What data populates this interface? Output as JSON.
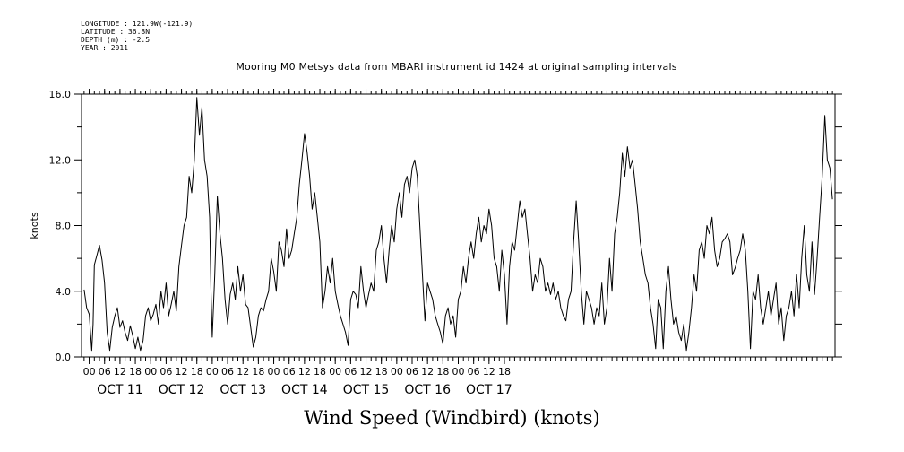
{
  "header": {
    "longitude": "LONGITUDE : 121.9W(-121.9)",
    "latitude": "LATITUDE : 36.8N",
    "depth": "DEPTH (m) : -2.5",
    "year": "YEAR : 2011"
  },
  "chart_data": {
    "type": "line",
    "title": "Mooring M0 Metsys data from MBARI instrument id 1424 at original sampling intervals",
    "bottom_title": "Wind Speed (Windbird) (knots)",
    "ylabel": "knots",
    "xlabel": "",
    "ylim": [
      0,
      16
    ],
    "yticks": [
      "0.0",
      "4.0",
      "8.0",
      "12.0",
      "16.0"
    ],
    "xlim": [
      "OCT 10 21:00",
      "OCT 17 21:00"
    ],
    "x_hour_ticks": [
      "00",
      "06",
      "12",
      "18",
      "00",
      "06",
      "12",
      "18",
      "00",
      "06",
      "12",
      "18",
      "00",
      "06",
      "12",
      "18",
      "00",
      "06",
      "12",
      "18",
      "00",
      "06",
      "12",
      "18",
      "00",
      "06",
      "12",
      "18"
    ],
    "x_day_labels": [
      "OCT 11",
      "OCT 12",
      "OCT 13",
      "OCT 14",
      "OCT 15",
      "OCT 16",
      "OCT 17"
    ],
    "grid": false,
    "series": [
      {
        "x_unit": "hours from OCT 11 00:00",
        "points": [
          [
            -2,
            4.1
          ],
          [
            -1,
            3.0
          ],
          [
            0,
            2.6
          ],
          [
            0.5,
            1.5
          ],
          [
            1,
            0.4
          ],
          [
            1.5,
            2.0
          ],
          [
            2,
            5.6
          ],
          [
            3,
            6.2
          ],
          [
            4,
            6.8
          ],
          [
            5,
            5.9
          ],
          [
            6,
            4.5
          ],
          [
            7,
            1.5
          ],
          [
            8,
            0.4
          ],
          [
            9,
            1.8
          ],
          [
            10,
            2.5
          ],
          [
            11,
            3.0
          ],
          [
            12,
            1.8
          ],
          [
            13,
            2.2
          ],
          [
            14,
            1.5
          ],
          [
            15,
            1.0
          ],
          [
            16,
            1.9
          ],
          [
            17,
            1.3
          ],
          [
            18,
            0.5
          ],
          [
            19,
            1.2
          ],
          [
            20,
            0.4
          ],
          [
            21,
            1.0
          ],
          [
            22,
            2.5
          ],
          [
            23,
            3.0
          ],
          [
            24,
            2.2
          ],
          [
            25,
            2.6
          ],
          [
            26,
            3.2
          ],
          [
            27,
            2.0
          ],
          [
            28,
            4.0
          ],
          [
            29,
            3.0
          ],
          [
            30,
            4.5
          ],
          [
            31,
            2.5
          ],
          [
            32,
            3.2
          ],
          [
            33,
            4.0
          ],
          [
            34,
            2.8
          ],
          [
            35,
            5.5
          ],
          [
            36,
            6.8
          ],
          [
            37,
            8.0
          ],
          [
            38,
            8.5
          ],
          [
            39,
            11.0
          ],
          [
            40,
            10.0
          ],
          [
            41,
            12.0
          ],
          [
            42,
            15.8
          ],
          [
            43,
            13.5
          ],
          [
            44,
            15.2
          ],
          [
            45,
            12.0
          ],
          [
            46,
            11.0
          ],
          [
            47,
            8.5
          ],
          [
            47.5,
            4.0
          ],
          [
            48,
            1.2
          ],
          [
            49,
            5.0
          ],
          [
            50,
            9.8
          ],
          [
            51,
            7.5
          ],
          [
            52,
            6.0
          ],
          [
            53,
            3.5
          ],
          [
            54,
            2.0
          ],
          [
            55,
            3.8
          ],
          [
            56,
            4.5
          ],
          [
            57,
            3.5
          ],
          [
            58,
            5.5
          ],
          [
            59,
            4.0
          ],
          [
            60,
            5.0
          ],
          [
            61,
            3.2
          ],
          [
            62,
            3.0
          ],
          [
            63,
            1.8
          ],
          [
            64,
            0.6
          ],
          [
            65,
            1.2
          ],
          [
            66,
            2.5
          ],
          [
            67,
            3.0
          ],
          [
            68,
            2.8
          ],
          [
            69,
            3.5
          ],
          [
            70,
            4.0
          ],
          [
            71,
            6.0
          ],
          [
            72,
            5.2
          ],
          [
            73,
            4.0
          ],
          [
            74,
            7.0
          ],
          [
            75,
            6.5
          ],
          [
            76,
            5.5
          ],
          [
            77,
            7.8
          ],
          [
            78,
            6.0
          ],
          [
            79,
            6.5
          ],
          [
            80,
            7.5
          ],
          [
            81,
            8.5
          ],
          [
            82,
            10.5
          ],
          [
            83,
            12.0
          ],
          [
            84,
            13.6
          ],
          [
            85,
            12.5
          ],
          [
            86,
            11.0
          ],
          [
            87,
            9.0
          ],
          [
            88,
            10.0
          ],
          [
            89,
            8.5
          ],
          [
            90,
            7.0
          ],
          [
            91,
            3.0
          ],
          [
            92,
            4.0
          ],
          [
            93,
            5.5
          ],
          [
            94,
            4.5
          ],
          [
            95,
            6.0
          ],
          [
            96,
            4.0
          ],
          [
            97,
            3.2
          ],
          [
            98,
            2.5
          ],
          [
            99,
            2.0
          ],
          [
            100,
            1.5
          ],
          [
            101,
            0.7
          ],
          [
            102,
            3.5
          ],
          [
            103,
            4.0
          ],
          [
            104,
            3.8
          ],
          [
            105,
            3.0
          ],
          [
            106,
            5.5
          ],
          [
            107,
            4.0
          ],
          [
            108,
            3.0
          ],
          [
            109,
            3.8
          ],
          [
            110,
            4.5
          ],
          [
            111,
            4.0
          ],
          [
            112,
            6.5
          ],
          [
            113,
            7.0
          ],
          [
            114,
            8.0
          ],
          [
            115,
            6.0
          ],
          [
            116,
            4.5
          ],
          [
            117,
            6.5
          ],
          [
            118,
            8.0
          ],
          [
            119,
            7.0
          ],
          [
            120,
            9.0
          ],
          [
            121,
            10.0
          ],
          [
            122,
            8.5
          ],
          [
            123,
            10.5
          ],
          [
            124,
            11.0
          ],
          [
            125,
            10.0
          ],
          [
            126,
            11.5
          ],
          [
            127,
            12.0
          ],
          [
            128,
            11.0
          ],
          [
            129,
            8.0
          ],
          [
            130,
            5.0
          ],
          [
            131,
            2.2
          ],
          [
            132,
            4.5
          ],
          [
            133,
            4.0
          ],
          [
            134,
            3.5
          ],
          [
            135,
            2.5
          ],
          [
            136,
            2.0
          ],
          [
            137,
            1.5
          ],
          [
            138,
            0.8
          ],
          [
            139,
            2.5
          ],
          [
            140,
            3.0
          ],
          [
            141,
            2.0
          ],
          [
            142,
            2.5
          ],
          [
            143,
            1.2
          ],
          [
            144,
            3.5
          ],
          [
            145,
            4.0
          ],
          [
            146,
            5.5
          ],
          [
            147,
            4.5
          ],
          [
            148,
            6.0
          ],
          [
            149,
            7.0
          ],
          [
            150,
            6.0
          ],
          [
            151,
            7.5
          ],
          [
            152,
            8.5
          ],
          [
            153,
            7.0
          ],
          [
            154,
            8.0
          ],
          [
            155,
            7.5
          ],
          [
            156,
            9.0
          ],
          [
            157,
            8.0
          ],
          [
            158,
            6.0
          ],
          [
            159,
            5.5
          ],
          [
            160,
            4.0
          ],
          [
            161,
            6.5
          ],
          [
            162,
            5.0
          ],
          [
            163,
            2.0
          ],
          [
            164,
            5.5
          ],
          [
            165,
            7.0
          ],
          [
            166,
            6.5
          ],
          [
            167,
            8.0
          ],
          [
            168,
            9.5
          ],
          [
            169,
            8.5
          ],
          [
            170,
            9.0
          ],
          [
            171,
            7.5
          ],
          [
            172,
            6.0
          ],
          [
            173,
            4.0
          ],
          [
            174,
            5.0
          ],
          [
            175,
            4.5
          ],
          [
            176,
            6.0
          ],
          [
            177,
            5.5
          ],
          [
            178,
            4.0
          ],
          [
            179,
            4.5
          ],
          [
            180,
            3.8
          ],
          [
            181,
            4.5
          ],
          [
            182,
            3.5
          ],
          [
            183,
            4.0
          ],
          [
            184,
            3.0
          ],
          [
            185,
            2.5
          ],
          [
            186,
            2.2
          ],
          [
            187,
            3.5
          ],
          [
            188,
            4.0
          ],
          [
            189,
            7.0
          ],
          [
            190,
            9.5
          ],
          [
            191,
            7.0
          ],
          [
            192,
            4.0
          ],
          [
            193,
            2.0
          ],
          [
            194,
            4.0
          ],
          [
            195,
            3.5
          ],
          [
            196,
            3.0
          ],
          [
            197,
            2.0
          ],
          [
            198,
            3.0
          ],
          [
            199,
            2.5
          ],
          [
            200,
            4.5
          ],
          [
            201,
            2.0
          ],
          [
            202,
            3.0
          ],
          [
            203,
            6.0
          ],
          [
            204,
            4.0
          ],
          [
            205,
            7.5
          ],
          [
            206,
            8.5
          ],
          [
            207,
            10.0
          ],
          [
            208,
            12.4
          ],
          [
            209,
            11.0
          ],
          [
            210,
            12.8
          ],
          [
            211,
            11.5
          ],
          [
            212,
            12.0
          ],
          [
            213,
            10.5
          ],
          [
            214,
            9.0
          ],
          [
            215,
            7.0
          ],
          [
            216,
            6.0
          ],
          [
            217,
            5.0
          ],
          [
            218,
            4.5
          ],
          [
            219,
            3.0
          ],
          [
            220,
            2.0
          ],
          [
            221,
            0.5
          ],
          [
            222,
            3.5
          ],
          [
            223,
            3.0
          ],
          [
            224,
            0.5
          ],
          [
            225,
            4.0
          ],
          [
            226,
            5.5
          ],
          [
            227,
            3.5
          ],
          [
            228,
            2.0
          ],
          [
            229,
            2.5
          ],
          [
            230,
            1.5
          ],
          [
            231,
            1.0
          ],
          [
            232,
            2.0
          ],
          [
            233,
            0.4
          ],
          [
            234,
            1.5
          ],
          [
            235,
            3.0
          ],
          [
            236,
            5.0
          ],
          [
            237,
            4.0
          ],
          [
            238,
            6.5
          ],
          [
            239,
            7.0
          ],
          [
            240,
            6.0
          ],
          [
            241,
            8.0
          ],
          [
            242,
            7.5
          ],
          [
            243,
            8.5
          ],
          [
            244,
            6.5
          ],
          [
            245,
            5.5
          ],
          [
            246,
            6.0
          ],
          [
            247,
            7.0
          ],
          [
            248,
            7.2
          ],
          [
            249,
            7.5
          ],
          [
            250,
            7.0
          ],
          [
            251,
            5.0
          ],
          [
            252,
            5.4
          ],
          [
            253,
            6.0
          ],
          [
            254,
            6.5
          ],
          [
            255,
            7.5
          ],
          [
            256,
            6.5
          ],
          [
            257,
            4.0
          ],
          [
            258,
            0.5
          ],
          [
            259,
            4.0
          ],
          [
            260,
            3.5
          ],
          [
            261,
            5.0
          ],
          [
            262,
            3.0
          ],
          [
            263,
            2.0
          ],
          [
            264,
            3.0
          ],
          [
            265,
            4.0
          ],
          [
            266,
            2.5
          ],
          [
            267,
            3.5
          ],
          [
            268,
            4.5
          ],
          [
            269,
            2.0
          ],
          [
            270,
            3.0
          ],
          [
            271,
            1.0
          ],
          [
            272,
            2.5
          ],
          [
            273,
            3.0
          ],
          [
            274,
            4.0
          ],
          [
            275,
            2.5
          ],
          [
            276,
            5.0
          ],
          [
            277,
            3.0
          ],
          [
            278,
            6.0
          ],
          [
            279,
            8.0
          ],
          [
            280,
            5.0
          ],
          [
            281,
            4.0
          ],
          [
            282,
            7.0
          ],
          [
            283,
            3.8
          ],
          [
            284,
            6.0
          ],
          [
            285,
            8.5
          ],
          [
            286,
            11.0
          ],
          [
            287,
            14.7
          ],
          [
            288,
            12.0
          ],
          [
            289,
            11.5
          ],
          [
            290,
            9.6
          ]
        ]
      }
    ]
  }
}
